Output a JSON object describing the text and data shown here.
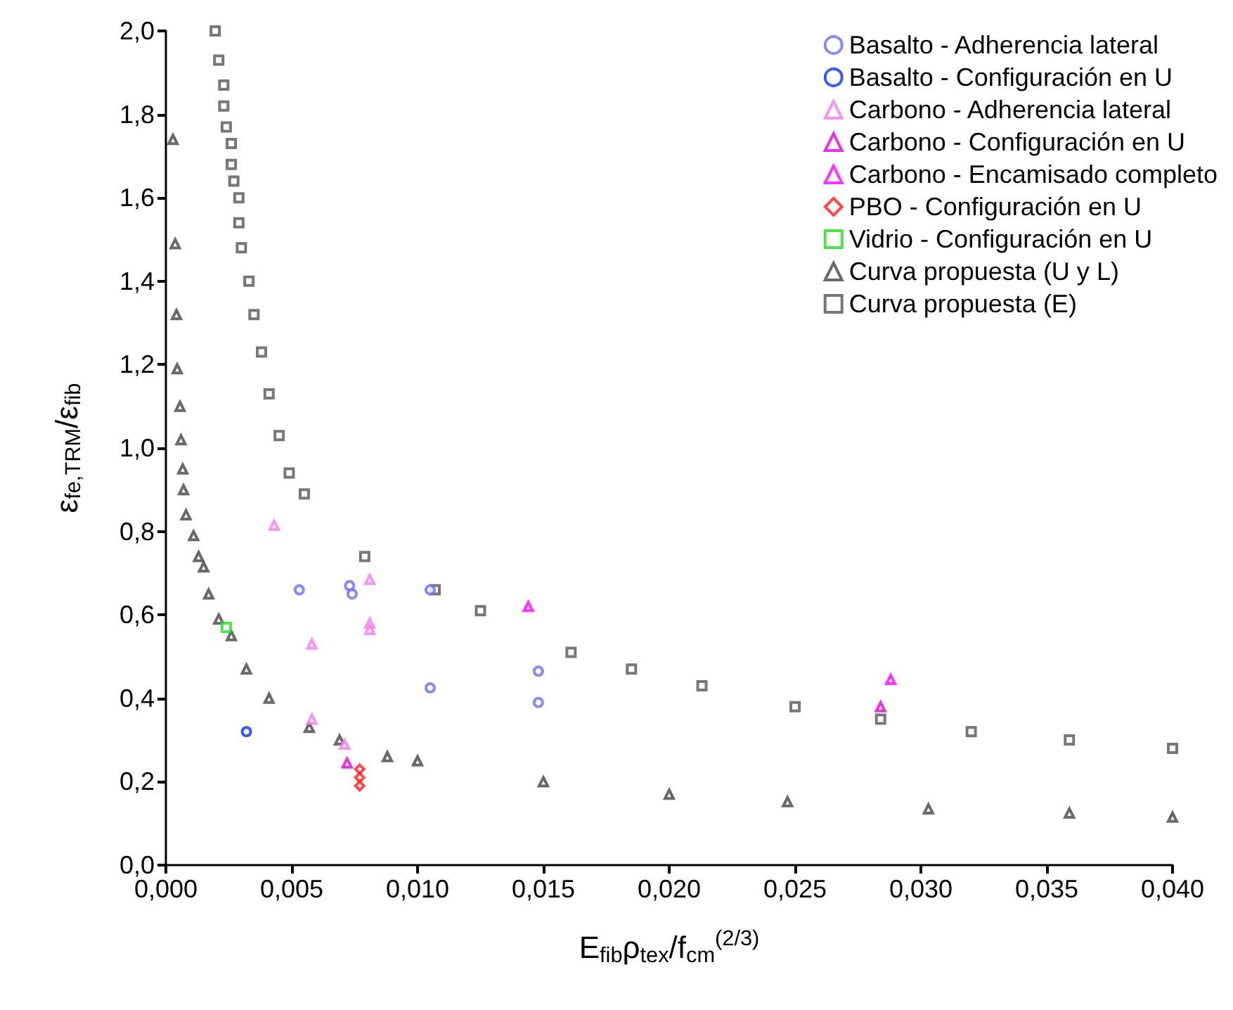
{
  "chart_data": {
    "type": "scatter",
    "xlabel": "E$_{fib}$ρ$_{tex}$/f$_{cm}$$^{(2/3)}$",
    "ylabel": "ε$_{fe,TRM}$/ε$_{fib}$",
    "xlim": [
      0,
      0.04
    ],
    "ylim": [
      0,
      2.0
    ],
    "xticks": [
      {
        "value": 0,
        "label": "0,000"
      },
      {
        "value": 0.005,
        "label": "0,005"
      },
      {
        "value": 0.01,
        "label": "0,010"
      },
      {
        "value": 0.015,
        "label": "0,015"
      },
      {
        "value": 0.02,
        "label": "0,020"
      },
      {
        "value": 0.025,
        "label": "0,025"
      },
      {
        "value": 0.03,
        "label": "0,030"
      },
      {
        "value": 0.035,
        "label": "0,035"
      },
      {
        "value": 0.04,
        "label": "0,040"
      }
    ],
    "yticks": [
      {
        "value": 0,
        "label": "0,0"
      },
      {
        "value": 0.2,
        "label": "0,2"
      },
      {
        "value": 0.4,
        "label": "0,4"
      },
      {
        "value": 0.6,
        "label": "0,6"
      },
      {
        "value": 0.8,
        "label": "0,8"
      },
      {
        "value": 1.0,
        "label": "1,0"
      },
      {
        "value": 1.2,
        "label": "1,2"
      },
      {
        "value": 1.4,
        "label": "1,4"
      },
      {
        "value": 1.6,
        "label": "1,6"
      },
      {
        "value": 1.8,
        "label": "1,8"
      },
      {
        "value": 2.0,
        "label": "2,0"
      }
    ],
    "grid": false,
    "legend": "top right",
    "series": [
      {
        "name": "Basalto - Adherencia lateral",
        "color": "#6b6bf5",
        "marker": "circle",
        "x": [
          0.0053,
          0.0073,
          0.0074,
          0.0105,
          0.0105,
          0.0148,
          0.0148
        ],
        "values": [
          0.66,
          0.67,
          0.65,
          0.66,
          0.425,
          0.465,
          0.39
        ]
      },
      {
        "name": "Basalto - Configuración en U",
        "color": "#0a2ff0",
        "marker": "circle",
        "x": [
          0.0032
        ],
        "values": [
          0.32
        ]
      },
      {
        "name": "Carbono - Adherencia lateral",
        "color": "#f07cf0",
        "marker": "triangle",
        "x": [
          0.0043,
          0.0081,
          0.0081,
          0.0081,
          0.0058,
          0.0058,
          0.0071
        ],
        "values": [
          0.815,
          0.685,
          0.58,
          0.565,
          0.53,
          0.35,
          0.29
        ]
      },
      {
        "name": "Carbono - Configuración en U",
        "color": "#e000e0",
        "marker": "triangle",
        "x": [
          0.0072,
          0.0284
        ],
        "values": [
          0.245,
          0.38
        ]
      },
      {
        "name": "Carbono - Encamisado completo",
        "color": "#ff00ff",
        "marker": "triangle",
        "x": [
          0.0144,
          0.0288
        ],
        "values": [
          0.62,
          0.445
        ]
      },
      {
        "name": "PBO - Configuración en U",
        "color": "#ff1a1a",
        "marker": "diamond",
        "x": [
          0.0077,
          0.0077,
          0.0077
        ],
        "values": [
          0.23,
          0.21,
          0.19
        ]
      },
      {
        "name": "Vidrio - Configuración en U",
        "color": "#22dd22",
        "marker": "square",
        "x": [
          0.0024
        ],
        "values": [
          0.57
        ]
      },
      {
        "name": "Curva propuesta (U y L)",
        "color": "#444444",
        "marker": "triangle",
        "x": [
          0.00028,
          0.00037,
          0.00042,
          0.00045,
          0.00056,
          0.0006,
          0.00067,
          0.0007,
          0.0008,
          0.0011,
          0.0013,
          0.0015,
          0.0017,
          0.0021,
          0.0026,
          0.0032,
          0.0041,
          0.0057,
          0.0069,
          0.0088,
          0.01,
          0.015,
          0.02,
          0.0247,
          0.0303,
          0.0359,
          0.04
        ],
        "values": [
          1.74,
          1.49,
          1.32,
          1.19,
          1.1,
          1.02,
          0.95,
          0.9,
          0.84,
          0.79,
          0.74,
          0.715,
          0.65,
          0.59,
          0.55,
          0.47,
          0.4,
          0.33,
          0.3,
          0.26,
          0.25,
          0.2,
          0.17,
          0.152,
          0.135,
          0.125,
          0.115
        ]
      },
      {
        "name": "Curva propuesta (E)",
        "color": "#555555",
        "marker": "square",
        "x": [
          0.00196,
          0.0021,
          0.0023,
          0.0023,
          0.0024,
          0.0026,
          0.0026,
          0.0027,
          0.0029,
          0.0029,
          0.003,
          0.0033,
          0.0035,
          0.0038,
          0.0041,
          0.0045,
          0.0049,
          0.0055,
          0.0079,
          0.0107,
          0.0125,
          0.0161,
          0.0185,
          0.0213,
          0.025,
          0.0284,
          0.032,
          0.0359,
          0.04
        ],
        "values": [
          2.0,
          1.93,
          1.87,
          1.82,
          1.77,
          1.73,
          1.68,
          1.64,
          1.6,
          1.54,
          1.48,
          1.4,
          1.32,
          1.23,
          1.13,
          1.03,
          0.94,
          0.89,
          0.74,
          0.66,
          0.61,
          0.51,
          0.47,
          0.43,
          0.38,
          0.35,
          0.32,
          0.3,
          0.28
        ]
      }
    ]
  }
}
